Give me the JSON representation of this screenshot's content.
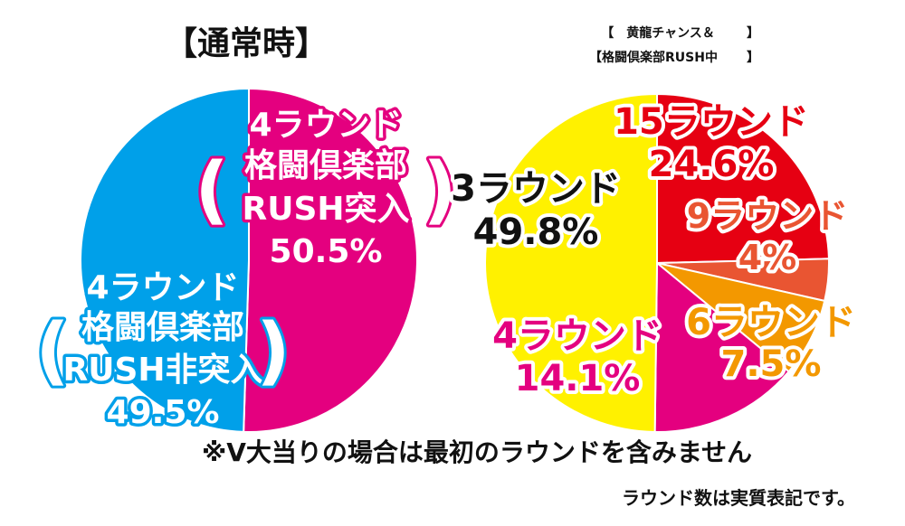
{
  "chart_data": [
    {
      "type": "pie",
      "title": "【通常時】",
      "slices": [
        {
          "name": "4ラウンド 格闘倶楽部 RUSH突入",
          "value": 50.5,
          "color": "#e4007f"
        },
        {
          "name": "4ラウンド 格闘倶楽部 RUSH非突入",
          "value": 49.5,
          "color": "#00a0e9"
        }
      ],
      "labels": [
        {
          "lines": [
            "4ラウンド",
            "格闘倶楽部",
            "RUSH突入",
            "50.5%"
          ],
          "paren_line_span": [
            1,
            2
          ]
        },
        {
          "lines": [
            "4ラウンド",
            "格闘倶楽部",
            "RUSH非突入",
            "49.5%"
          ],
          "paren_line_span": [
            1,
            2
          ]
        }
      ],
      "parens": [
        "(",
        ")"
      ]
    },
    {
      "type": "pie",
      "title_lines": [
        "【　黄龍チャンス＆",
        "【格闘倶楽部RUSH中"
      ],
      "title_bracket": "】",
      "slices": [
        {
          "name": "15ラウンド",
          "value": 24.6,
          "color": "#e60012"
        },
        {
          "name": "9ラウンド",
          "value": 4,
          "color": "#e95532"
        },
        {
          "name": "6ラウンド",
          "value": 7.5,
          "color": "#f39800"
        },
        {
          "name": "4ラウンド",
          "value": 14.1,
          "color": "#e4007f"
        },
        {
          "name": "3ラウンド",
          "value": 49.8,
          "color": "#fff100"
        }
      ],
      "labels": [
        {
          "lines": [
            "15ラウンド",
            "24.6%"
          ],
          "fill": "#e60012"
        },
        {
          "lines": [
            "9ラウンド",
            "4%"
          ],
          "fill": "#e95532"
        },
        {
          "lines": [
            "6ラウンド",
            "7.5%"
          ],
          "fill": "#f39800"
        },
        {
          "lines": [
            "4ラウンド",
            "14.1%"
          ],
          "fill": "#e4007f"
        },
        {
          "lines": [
            "3ラウンド",
            "49.8%"
          ],
          "fill": "#111111"
        }
      ]
    }
  ],
  "footnote": "※V大当りの場合は最初のラウンドを含みません",
  "sub_footnote": "ラウンド数は実質表記です。"
}
